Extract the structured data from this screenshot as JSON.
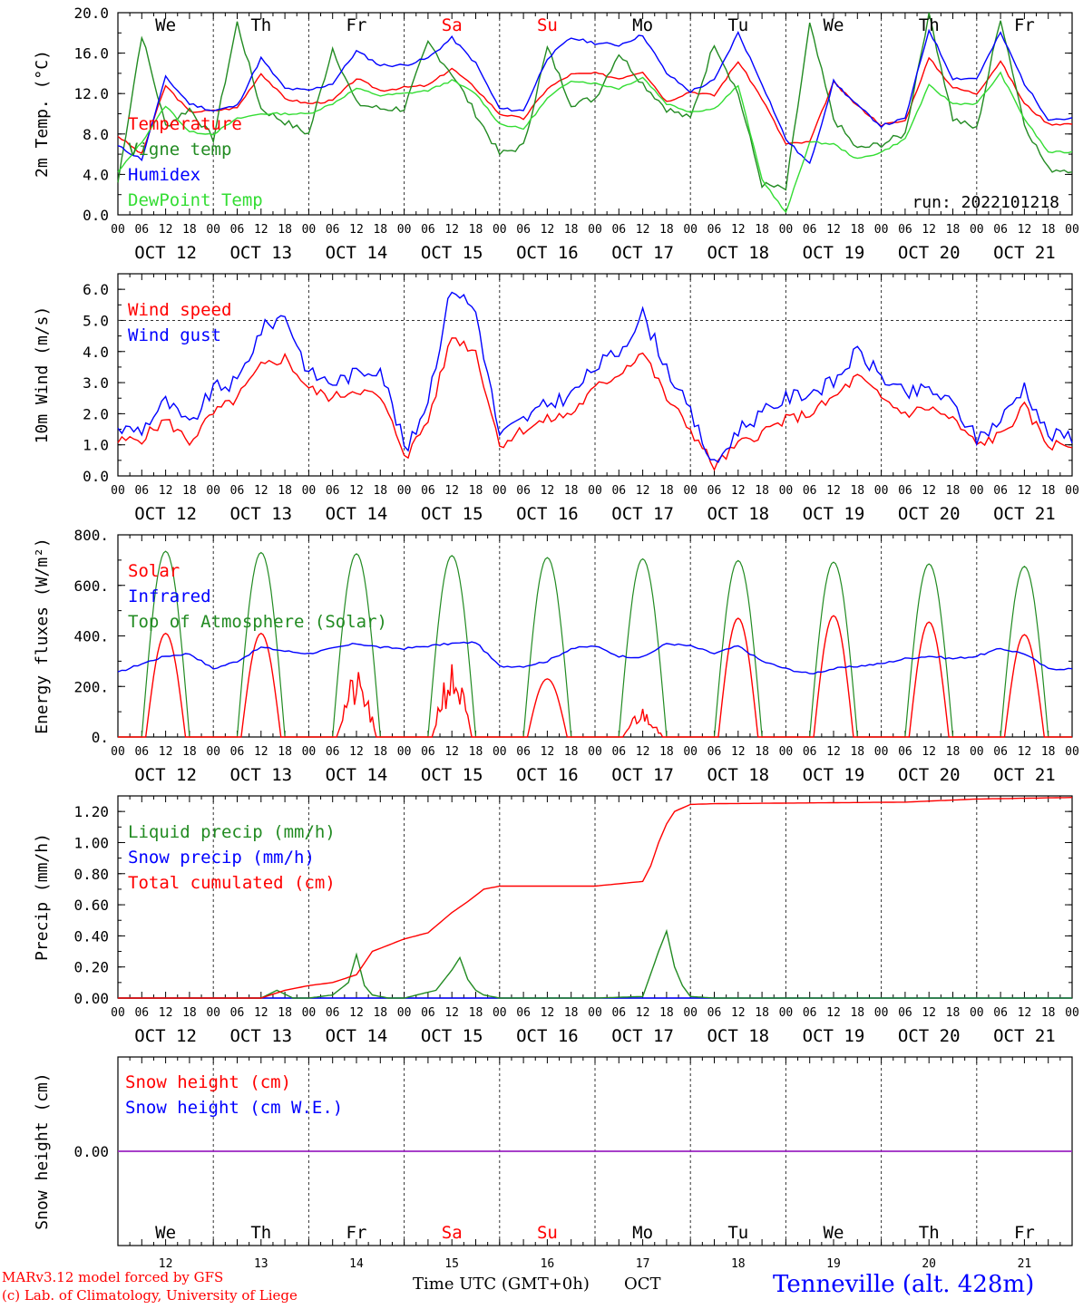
{
  "colors": {
    "red": "#ff0000",
    "green": "#228b22",
    "lightgreen": "#33dd33",
    "blue": "#0000ff",
    "purple": "#8a2be2",
    "axis": "#000000"
  },
  "days": [
    "We",
    "Th",
    "Fr",
    "Sa",
    "Su",
    "Mo",
    "Tu",
    "We",
    "Th",
    "Fr"
  ],
  "weekend_days": [
    "Sa",
    "Su"
  ],
  "dates": [
    "OCT 12",
    "OCT 13",
    "OCT 14",
    "OCT 15",
    "OCT 16",
    "OCT 17",
    "OCT 18",
    "OCT 19",
    "OCT 20",
    "OCT 21"
  ],
  "hour_ticks": [
    "00",
    "06",
    "12",
    "18"
  ],
  "final_hour_label": "00",
  "footer": {
    "credit1": "MARv3.12 model forced by GFS",
    "credit2": "(c) Lab. of Climatology, University of Liege",
    "xlabel": "Time UTC (GMT+0h)",
    "month": "OCT",
    "location": "Tenneville (alt. 428m)",
    "day_numbers": [
      "12",
      "13",
      "14",
      "15",
      "16",
      "17",
      "18",
      "19",
      "20",
      "21"
    ]
  },
  "chart_data": [
    {
      "type": "line",
      "ylabel": "2m Temp. (°C)",
      "ylim": [
        0,
        20
      ],
      "yticks": [
        "0.0",
        "4.0",
        "8.0",
        "12.0",
        "16.0",
        "20.0"
      ],
      "show_days": true,
      "run_label": "run: 2022101218",
      "x_unit": "hours since OCT 12 00 UTC",
      "series": [
        {
          "name": "Temperature",
          "color": "red",
          "x": [
            0,
            6,
            12,
            18,
            24,
            30,
            36,
            42,
            48,
            54,
            60,
            66,
            72,
            78,
            84,
            90,
            96,
            102,
            108,
            114,
            120,
            126,
            132,
            138,
            144,
            150,
            156,
            162,
            168,
            174,
            180,
            186,
            192,
            198,
            204,
            210,
            216,
            222,
            228,
            234
          ],
          "y": [
            7.8,
            6.0,
            12.8,
            10.2,
            10.3,
            10.6,
            14.0,
            11.5,
            11.0,
            11.3,
            13.5,
            12.3,
            12.6,
            12.8,
            14.5,
            12.5,
            10.0,
            9.5,
            12.5,
            13.9,
            14.0,
            13.5,
            14.2,
            11.2,
            12.2,
            11.8,
            15.2,
            11.5,
            7.0,
            7.2,
            13.1,
            10.8,
            8.9,
            9.3,
            15.5,
            12.6,
            12.0,
            15.2,
            11.0,
            9.0
          ]
        },
        {
          "name": "Vigne temp",
          "color": "green",
          "x": [
            0,
            6,
            12,
            18,
            24,
            30,
            36,
            42,
            48,
            54,
            60,
            66,
            72,
            78,
            84,
            90,
            96,
            102,
            108,
            114,
            120,
            126,
            132,
            138,
            144,
            150,
            156,
            162,
            168,
            174,
            180,
            186,
            192,
            198,
            204,
            210,
            216,
            222,
            228,
            234
          ],
          "y": [
            3.2,
            17.8,
            8.8,
            10.5,
            7.5,
            19.0,
            10.5,
            9.2,
            8.0,
            16.5,
            11.0,
            10.5,
            10.5,
            17.0,
            14.0,
            10.0,
            6.0,
            6.8,
            16.5,
            11.0,
            11.5,
            16.0,
            13.0,
            10.5,
            9.5,
            17.0,
            12.0,
            3.0,
            2.5,
            18.8,
            9.5,
            6.5,
            7.0,
            8.0,
            20.0,
            9.5,
            8.5,
            19.5,
            9.0,
            4.5
          ]
        },
        {
          "name": "Humidex",
          "color": "blue",
          "x": [
            0,
            6,
            12,
            18,
            24,
            30,
            36,
            42,
            48,
            54,
            60,
            66,
            72,
            78,
            84,
            90,
            96,
            102,
            108,
            114,
            120,
            126,
            132,
            138,
            144,
            150,
            156,
            162,
            168,
            174,
            180,
            186,
            192,
            198,
            204,
            210,
            216,
            222,
            228,
            234
          ],
          "y": [
            6.8,
            5.5,
            13.6,
            11.0,
            10.3,
            10.8,
            15.5,
            12.5,
            12.3,
            13.0,
            16.2,
            14.8,
            14.8,
            15.5,
            17.5,
            15.0,
            10.5,
            10.3,
            15.5,
            17.5,
            17.0,
            16.8,
            17.8,
            14.0,
            12.2,
            13.3,
            18.0,
            13.0,
            7.5,
            5.0,
            13.2,
            10.8,
            8.8,
            9.5,
            18.3,
            13.5,
            13.5,
            18.0,
            13.0,
            9.5
          ]
        },
        {
          "name": "DewPoint Temp",
          "color": "lightgreen",
          "x": [
            0,
            6,
            12,
            18,
            24,
            30,
            36,
            42,
            48,
            54,
            60,
            66,
            72,
            78,
            84,
            90,
            96,
            102,
            108,
            114,
            120,
            126,
            132,
            138,
            144,
            150,
            156,
            162,
            168,
            174,
            180,
            186,
            192,
            198,
            204,
            210,
            216,
            222,
            228,
            234
          ],
          "y": [
            4.2,
            7.2,
            10.8,
            8.2,
            8.0,
            9.5,
            10.0,
            10.0,
            10.0,
            11.0,
            12.5,
            11.8,
            12.0,
            12.3,
            13.3,
            12.0,
            9.0,
            8.5,
            11.5,
            13.3,
            13.0,
            12.5,
            13.6,
            11.0,
            10.2,
            10.5,
            12.8,
            3.5,
            0.2,
            7.2,
            7.0,
            5.5,
            6.2,
            7.5,
            12.8,
            11.0,
            11.0,
            14.0,
            9.5,
            6.2
          ]
        }
      ]
    },
    {
      "type": "line",
      "ylabel": "10m Wind (m/s)",
      "ylim": [
        0,
        6.5
      ],
      "yticks": [
        "0.0",
        "1.0",
        "2.0",
        "3.0",
        "4.0",
        "5.0",
        "6.0"
      ],
      "dashed_y": 5.0,
      "x_unit": "hours since OCT 12 00 UTC",
      "series": [
        {
          "name": "Wind speed",
          "color": "red",
          "x": [
            0,
            6,
            12,
            18,
            24,
            30,
            36,
            42,
            48,
            54,
            60,
            66,
            72,
            72.5,
            78,
            84,
            90,
            96,
            102,
            108,
            114,
            120,
            126,
            132,
            138,
            144,
            150,
            156,
            162,
            168,
            174,
            180,
            186,
            192,
            198,
            204,
            210,
            216,
            222,
            228,
            234
          ],
          "y": [
            1.1,
            1.2,
            1.8,
            1.1,
            2.0,
            2.5,
            3.5,
            3.8,
            2.8,
            2.5,
            2.8,
            2.5,
            0.8,
            0.6,
            1.8,
            4.5,
            4.0,
            1.0,
            1.5,
            1.8,
            2.0,
            2.8,
            3.3,
            4.0,
            2.5,
            1.5,
            0.3,
            1.0,
            1.4,
            1.8,
            2.0,
            2.5,
            3.2,
            2.5,
            2.0,
            2.2,
            1.8,
            1.0,
            1.3,
            2.2,
            1.0
          ]
        },
        {
          "name": "Wind gust",
          "color": "blue",
          "x": [
            0,
            6,
            12,
            18,
            24,
            30,
            36,
            42,
            48,
            54,
            60,
            66,
            72,
            72.5,
            78,
            84,
            90,
            96,
            102,
            108,
            114,
            120,
            126,
            132,
            138,
            144,
            150,
            156,
            162,
            168,
            174,
            180,
            186,
            192,
            198,
            204,
            210,
            216,
            222,
            228,
            234
          ],
          "y": [
            1.5,
            1.5,
            2.4,
            1.6,
            2.8,
            3.0,
            4.7,
            5.2,
            3.3,
            3.0,
            3.3,
            3.5,
            1.0,
            0.7,
            2.5,
            6.1,
            5.3,
            1.3,
            1.8,
            2.3,
            2.6,
            3.5,
            4.0,
            5.2,
            3.5,
            2.0,
            0.3,
            1.5,
            2.0,
            2.5,
            2.7,
            3.0,
            4.0,
            3.2,
            2.6,
            2.8,
            2.3,
            1.2,
            1.8,
            2.9,
            1.3
          ]
        }
      ]
    },
    {
      "type": "line",
      "ylabel": "Energy fluxes (W/m²)",
      "ylim": [
        0,
        800
      ],
      "yticks": [
        "0.",
        "200.",
        "400.",
        "600.",
        "800."
      ],
      "x_unit": "hours since OCT 12 00 UTC",
      "solar_peaks": [
        410,
        410,
        260,
        300,
        230,
        120,
        470,
        480,
        455,
        405
      ],
      "toa_peaks": [
        735,
        730,
        725,
        718,
        710,
        705,
        698,
        692,
        685,
        675
      ],
      "series": [
        {
          "name": "Solar",
          "color": "red"
        },
        {
          "name": "Infrared",
          "color": "blue",
          "x": [
            0,
            6,
            12,
            18,
            24,
            30,
            36,
            42,
            48,
            54,
            60,
            66,
            72,
            78,
            84,
            90,
            96,
            102,
            108,
            114,
            120,
            126,
            132,
            138,
            144,
            150,
            156,
            162,
            168,
            174,
            180,
            186,
            192,
            198,
            204,
            210,
            216,
            222,
            228,
            234
          ],
          "y": [
            255,
            290,
            320,
            330,
            270,
            300,
            355,
            340,
            330,
            350,
            370,
            355,
            350,
            360,
            370,
            375,
            280,
            280,
            300,
            350,
            360,
            320,
            315,
            370,
            360,
            330,
            360,
            300,
            270,
            250,
            270,
            280,
            290,
            310,
            320,
            310,
            320,
            350,
            330,
            270
          ]
        },
        {
          "name": "Top of Atmosphere (Solar)",
          "color": "green"
        }
      ]
    },
    {
      "type": "line",
      "ylabel": "Precip (mm/h)",
      "ylim": [
        0,
        1.3
      ],
      "yticks": [
        "0.00",
        "0.20",
        "0.40",
        "0.60",
        "0.80",
        "1.00",
        "1.20"
      ],
      "x_unit": "hours since OCT 12 00 UTC",
      "series": [
        {
          "name": "Liquid precip (mm/h)",
          "color": "green",
          "x": [
            0,
            30,
            36,
            40,
            44,
            48,
            54,
            58,
            60,
            62,
            64,
            68,
            72,
            80,
            84,
            86,
            88,
            90,
            92,
            96,
            120,
            132,
            136,
            138,
            140,
            142,
            144,
            150,
            240
          ],
          "y": [
            0,
            0,
            0,
            0.05,
            0,
            0,
            0.02,
            0.1,
            0.28,
            0.08,
            0.02,
            0,
            0,
            0.05,
            0.18,
            0.26,
            0.12,
            0.05,
            0.02,
            0,
            0,
            0.01,
            0.3,
            0.43,
            0.2,
            0.08,
            0.01,
            0,
            0
          ]
        },
        {
          "name": "Snow precip (mm/h)",
          "color": "blue",
          "x": [
            0,
            240
          ],
          "y": [
            0,
            0
          ]
        },
        {
          "name": "Total cumulated (cm)",
          "color": "red",
          "x": [
            0,
            36,
            42,
            48,
            54,
            60,
            64,
            72,
            78,
            84,
            88,
            92,
            96,
            120,
            132,
            134,
            136,
            138,
            140,
            144,
            150,
            198,
            216,
            240
          ],
          "y": [
            0,
            0,
            0.05,
            0.08,
            0.1,
            0.15,
            0.3,
            0.38,
            0.42,
            0.55,
            0.62,
            0.7,
            0.72,
            0.72,
            0.75,
            0.85,
            1.0,
            1.12,
            1.2,
            1.245,
            1.25,
            1.26,
            1.28,
            1.29
          ]
        }
      ]
    },
    {
      "type": "line",
      "ylabel": "Snow height (cm)",
      "ylim": [
        -1,
        1
      ],
      "yticks": [
        "0.00"
      ],
      "x_unit": "hours since OCT 12 00 UTC",
      "series": [
        {
          "name": "Snow height (cm)",
          "color": "red",
          "x": [
            0,
            240
          ],
          "y": [
            0,
            0
          ]
        },
        {
          "name": "Snow height (cm W.E.)",
          "color": "blue",
          "x": [
            0,
            240
          ],
          "y": [
            0,
            0
          ]
        }
      ]
    }
  ]
}
